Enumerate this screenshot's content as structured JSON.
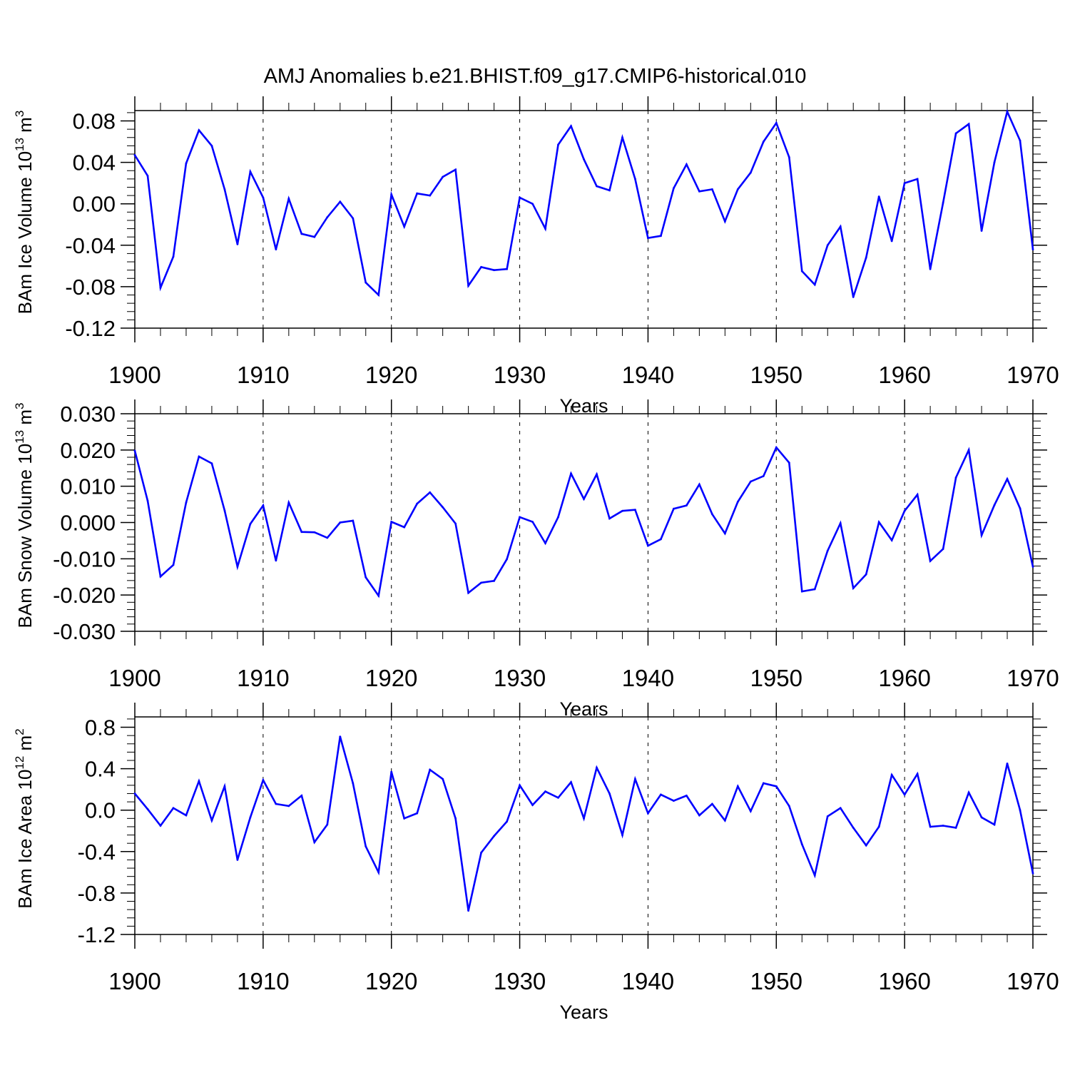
{
  "title": "AMJ Anomalies b.e21.BHIST.f09_g17.CMIP6-historical.010",
  "chart_data": [
    {
      "type": "line",
      "name": "ice-volume",
      "ylabel_main": "BAm Ice Volume 10",
      "ylabel_exp": "13",
      "ylabel_unit": " m",
      "ylabel_unit_exp": "3",
      "xlabel": "Years",
      "xlim": [
        1900,
        1970
      ],
      "ylim": [
        -0.12,
        0.09
      ],
      "yticks": [
        "-0.12",
        "-0.08",
        "-0.04",
        "0.00",
        "0.04",
        "0.08"
      ],
      "xticks": [
        "1900",
        "1910",
        "1920",
        "1930",
        "1940",
        "1950",
        "1960",
        "1970"
      ],
      "line_color": "#0000ff",
      "series": [
        {
          "name": "BAm Ice Volume",
          "values": [
            0.047,
            0.027,
            -0.081,
            -0.051,
            0.039,
            0.071,
            0.056,
            0.014,
            -0.039,
            0.031,
            0.006,
            -0.044,
            0.005,
            -0.029,
            -0.032,
            -0.013,
            0.002,
            -0.014,
            -0.076,
            -0.088,
            0.009,
            -0.022,
            0.01,
            0.008,
            0.026,
            0.033,
            -0.079,
            -0.061,
            -0.064,
            -0.063,
            0.006,
            0.0,
            -0.024,
            0.057,
            0.075,
            0.043,
            0.017,
            0.013,
            0.064,
            0.024,
            -0.033,
            -0.031,
            0.015,
            0.038,
            0.012,
            0.014,
            -0.017,
            0.014,
            0.03,
            0.06,
            0.078,
            0.045,
            -0.065,
            -0.078,
            -0.04,
            -0.022,
            -0.09,
            -0.052,
            0.007,
            -0.036,
            0.02,
            0.024,
            -0.063,
            0.001,
            0.068,
            0.077,
            -0.026,
            0.04,
            0.089,
            0.061,
            -0.044
          ]
        }
      ]
    },
    {
      "type": "line",
      "name": "snow-volume",
      "ylabel_main": "BAm Snow Volume 10",
      "ylabel_exp": "13",
      "ylabel_unit": " m",
      "ylabel_unit_exp": "3",
      "xlabel": "Years",
      "xlim": [
        1900,
        1970
      ],
      "ylim": [
        -0.03,
        0.03
      ],
      "yticks": [
        "-0.030",
        "-0.020",
        "-0.010",
        "0.000",
        "0.010",
        "0.020",
        "0.030"
      ],
      "xticks": [
        "1900",
        "1910",
        "1920",
        "1930",
        "1940",
        "1950",
        "1960",
        "1970"
      ],
      "line_color": "#0000ff",
      "series": [
        {
          "name": "BAm Snow Volume",
          "values": [
            0.0198,
            0.006,
            -0.0149,
            -0.0117,
            0.0055,
            0.0182,
            0.0163,
            0.0033,
            -0.0122,
            -0.0004,
            0.0047,
            -0.0105,
            0.0055,
            -0.0026,
            -0.0027,
            -0.0042,
            0.0,
            0.0005,
            -0.0151,
            -0.0202,
            0.0002,
            -0.0013,
            0.0052,
            0.0083,
            0.0042,
            -0.0003,
            -0.0194,
            -0.0166,
            -0.0161,
            -0.0101,
            0.0015,
            0.0002,
            -0.0057,
            0.0015,
            0.0135,
            0.0065,
            0.0133,
            0.0011,
            0.0032,
            0.0035,
            -0.0064,
            -0.0046,
            0.0038,
            0.0047,
            0.0105,
            0.0023,
            -0.003,
            0.0057,
            0.0113,
            0.0128,
            0.0207,
            0.0165,
            -0.019,
            -0.0184,
            -0.0078,
            -0.0002,
            -0.0181,
            -0.0143,
            0.0001,
            -0.0049,
            0.0032,
            0.0077,
            -0.0106,
            -0.0073,
            0.0124,
            0.02,
            -0.0035,
            0.0048,
            0.012,
            0.0039,
            -0.0122
          ]
        }
      ]
    },
    {
      "type": "line",
      "name": "ice-area",
      "ylabel_main": "BAm Ice Area 10",
      "ylabel_exp": "12",
      "ylabel_unit": " m",
      "ylabel_unit_exp": "2",
      "xlabel": "Years",
      "xlim": [
        1900,
        1970
      ],
      "ylim": [
        -1.2,
        0.9
      ],
      "yticks": [
        "-1.2",
        "-0.8",
        "-0.4",
        "0.0",
        "0.4",
        "0.8"
      ],
      "xticks": [
        "1900",
        "1910",
        "1920",
        "1930",
        "1940",
        "1950",
        "1960",
        "1970"
      ],
      "line_color": "#0000ff",
      "series": [
        {
          "name": "BAm Ice Area",
          "values": [
            0.16,
            0.01,
            -0.15,
            0.02,
            -0.05,
            0.28,
            -0.1,
            0.23,
            -0.48,
            -0.07,
            0.29,
            0.06,
            0.04,
            0.14,
            -0.31,
            -0.14,
            0.71,
            0.26,
            -0.35,
            -0.6,
            0.37,
            -0.08,
            -0.03,
            0.39,
            0.3,
            -0.08,
            -0.97,
            -0.41,
            -0.25,
            -0.11,
            0.24,
            0.05,
            0.18,
            0.12,
            0.27,
            -0.08,
            0.41,
            0.16,
            -0.24,
            0.3,
            -0.03,
            0.15,
            0.09,
            0.14,
            -0.05,
            0.06,
            -0.1,
            0.23,
            -0.01,
            0.26,
            0.23,
            0.04,
            -0.33,
            -0.63,
            -0.06,
            0.02,
            -0.17,
            -0.34,
            -0.16,
            0.34,
            0.15,
            0.35,
            -0.16,
            -0.15,
            -0.17,
            0.17,
            -0.07,
            -0.14,
            0.45,
            0.0,
            -0.61
          ]
        }
      ]
    }
  ]
}
